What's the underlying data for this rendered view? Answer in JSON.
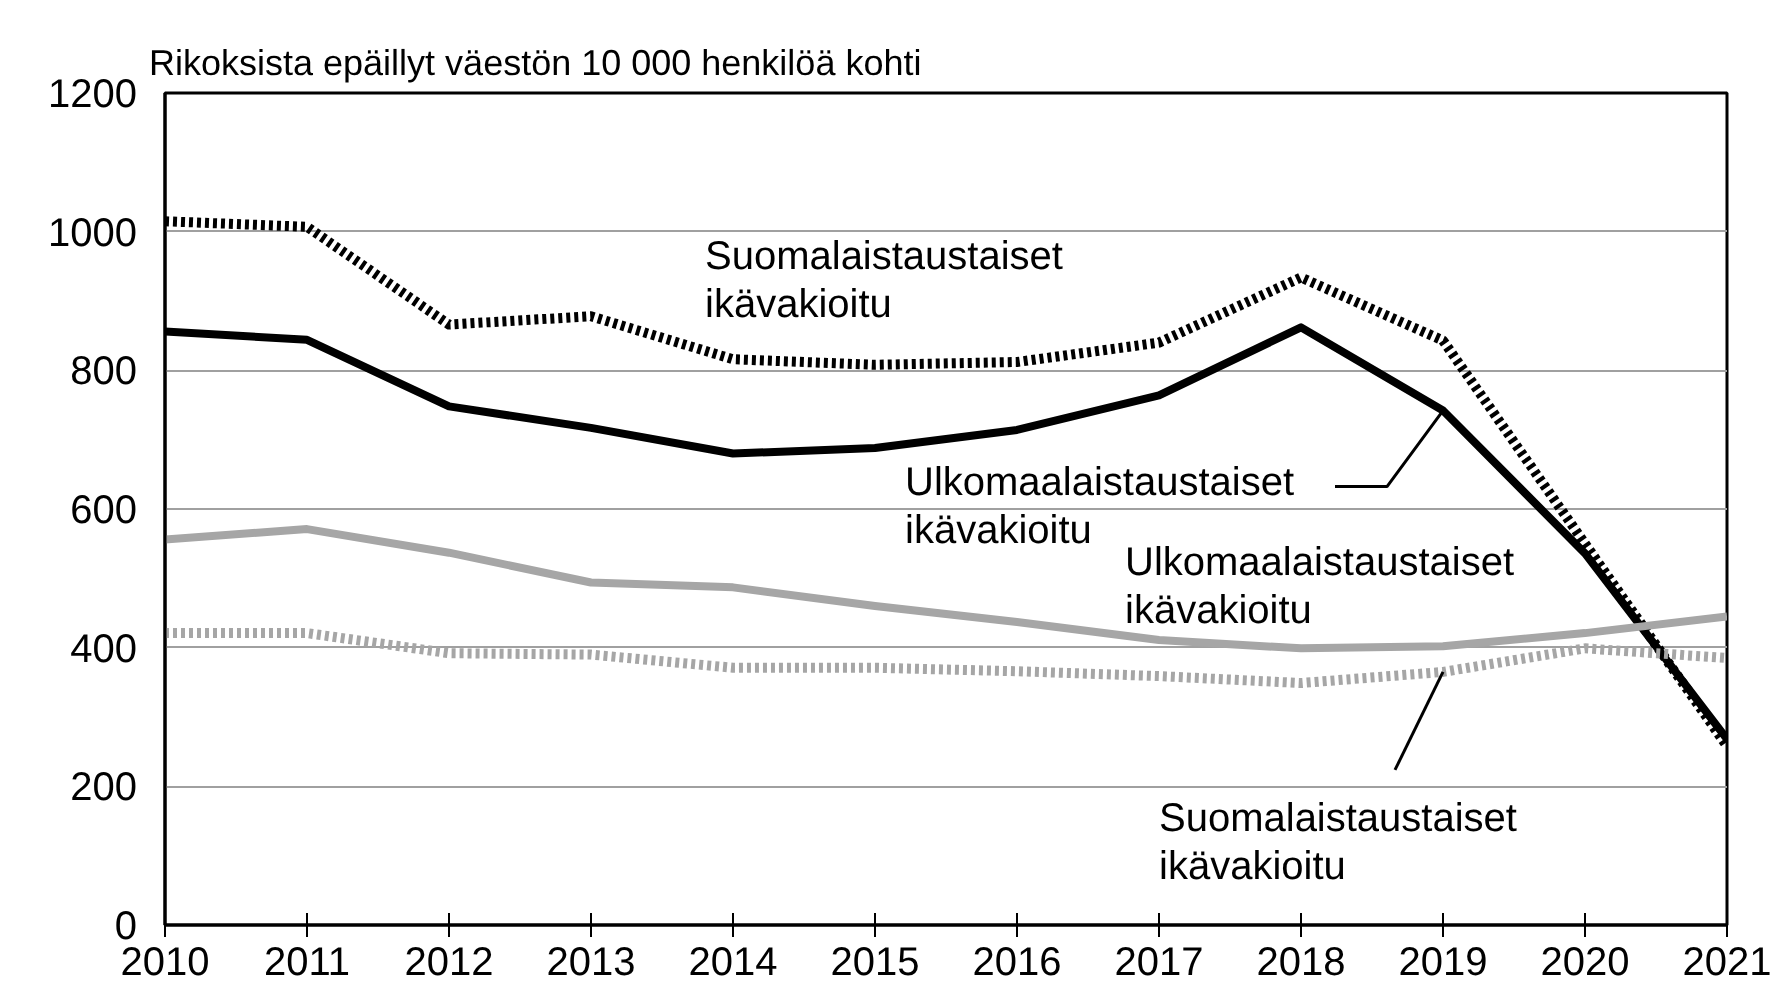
{
  "chart_data": {
    "type": "line",
    "title": "Rikoksista epäillyt väestön 10 000 henkilöä kohti",
    "x": [
      2010,
      2011,
      2012,
      2013,
      2014,
      2015,
      2016,
      2017,
      2018,
      2019,
      2020,
      2021
    ],
    "xlim": [
      2010,
      2021
    ],
    "xticks": [
      2010,
      2011,
      2012,
      2013,
      2014,
      2015,
      2016,
      2017,
      2018,
      2019,
      2020,
      2021
    ],
    "ylim": [
      0,
      1200
    ],
    "yticks": [
      0,
      200,
      400,
      600,
      800,
      1000,
      1200
    ],
    "grid": "y",
    "marker": "none",
    "series": [
      {
        "color": "#000000",
        "line_style": "dotted",
        "values": [
          1015,
          1007,
          866,
          878,
          816,
          808,
          812,
          840,
          934,
          843,
          550,
          258
        ]
      },
      {
        "color": "#000000",
        "line_style": "solid",
        "values": [
          856,
          844,
          748,
          717,
          680,
          688,
          714,
          764,
          862,
          742,
          536,
          268
        ]
      },
      {
        "color": "#a6a6a6",
        "line_style": "solid",
        "values": [
          556,
          571,
          537,
          494,
          487,
          460,
          437,
          411,
          399,
          402,
          421,
          445
        ]
      },
      {
        "color": "#a6a6a6",
        "line_style": "dotted",
        "values": [
          421,
          421,
          392,
          390,
          371,
          371,
          366,
          359,
          349,
          365,
          399,
          385
        ]
      }
    ],
    "annotations": [
      "Suomalaistaustaiset\nikävakioitu",
      {
        "text": "Ulkomaalaistaustaiset\nikävakioitu",
        "x": 2019,
        "y": 742
      },
      "Ulkomaalaistaustaiset\nikävakioitu",
      {
        "text": "Suomalaistaustaiset\nikävakioitu",
        "x": 2019,
        "y": 365
      }
    ]
  }
}
